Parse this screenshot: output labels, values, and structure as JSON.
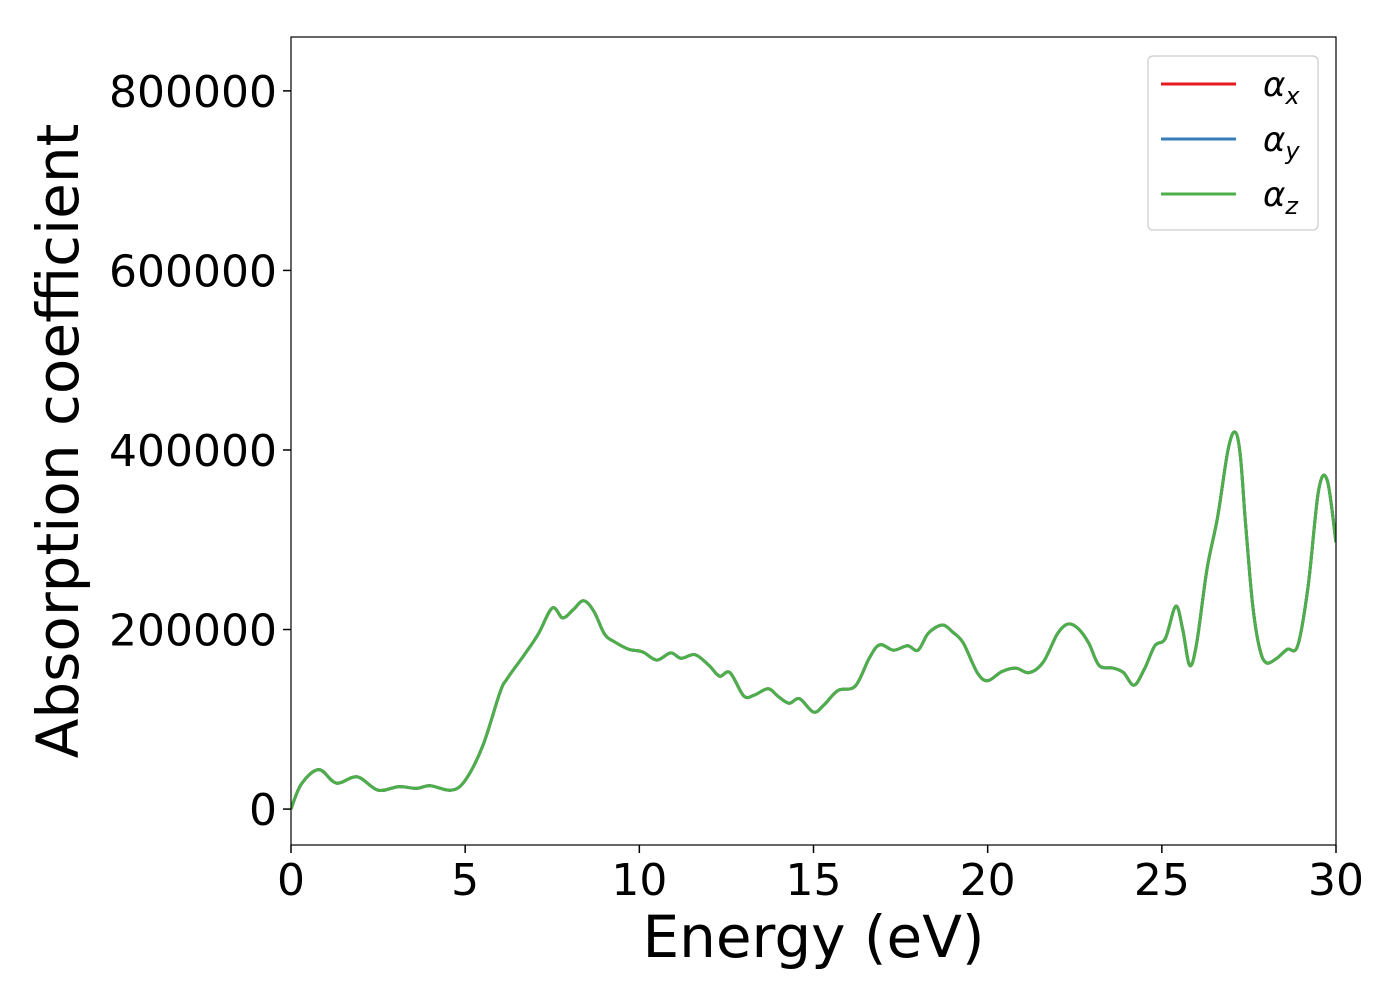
{
  "chart_data": {
    "type": "line",
    "xlabel": "Energy (eV)",
    "ylabel": "Absorption coefficient",
    "xlim": [
      0,
      30
    ],
    "ylim": [
      -40000,
      860000
    ],
    "xticks": [
      0,
      5,
      10,
      15,
      20,
      25,
      30
    ],
    "yticks": [
      0,
      200000,
      400000,
      600000,
      800000
    ],
    "xtick_labels": [
      "0",
      "5",
      "10",
      "15",
      "20",
      "25",
      "30"
    ],
    "ytick_labels": [
      "0",
      "200000",
      "400000",
      "600000",
      "800000"
    ],
    "grid": false,
    "legend_position": "top-right",
    "series": [
      {
        "name": "α_x",
        "symbol": "α",
        "subscript": "x",
        "color": "#e41a1c",
        "x": [
          0,
          0.3,
          0.8,
          1.3,
          1.9,
          2.5,
          3.1,
          3.6,
          4.0,
          4.6,
          5.0,
          5.5,
          6.0,
          6.2,
          6.7,
          7.1,
          7.5,
          7.8,
          8.1,
          8.4,
          8.7,
          9.0,
          9.3,
          9.7,
          10.1,
          10.5,
          10.9,
          11.2,
          11.6,
          12.0,
          12.3,
          12.6,
          13.0,
          13.3,
          13.7,
          14.0,
          14.3,
          14.6,
          15.0,
          15.3,
          15.7,
          16.2,
          16.6,
          16.9,
          17.3,
          17.7,
          18.0,
          18.3,
          18.7,
          19.0,
          19.3,
          19.7,
          20.0,
          20.4,
          20.8,
          21.2,
          21.6,
          22.0,
          22.3,
          22.6,
          22.9,
          23.2,
          23.6,
          23.9,
          24.2,
          24.5,
          24.8,
          25.1,
          25.4,
          25.6,
          25.8,
          26.0,
          26.3,
          26.6,
          26.9,
          27.1,
          27.25,
          27.4,
          27.6,
          27.8,
          28.0,
          28.3,
          28.6,
          28.9,
          29.2,
          29.5,
          29.75,
          30.0
        ],
        "values": [
          0,
          28000,
          44000,
          29000,
          36000,
          21000,
          25000,
          23000,
          26000,
          21000,
          32000,
          70000,
          130000,
          145000,
          172000,
          195000,
          224000,
          213000,
          222000,
          232000,
          220000,
          195000,
          186000,
          178000,
          175000,
          166000,
          174000,
          168000,
          172000,
          160000,
          148000,
          152000,
          126000,
          127000,
          134000,
          125000,
          118000,
          123000,
          108000,
          116000,
          132000,
          137000,
          168000,
          183000,
          177000,
          182000,
          177000,
          196000,
          205000,
          197000,
          185000,
          152000,
          143000,
          153000,
          157000,
          152000,
          164000,
          195000,
          206000,
          201000,
          185000,
          160000,
          157000,
          152000,
          138000,
          156000,
          182000,
          190000,
          226000,
          200000,
          160000,
          185000,
          268000,
          325000,
          400000,
          420000,
          395000,
          320000,
          230000,
          180000,
          163000,
          168000,
          178000,
          182000,
          248000,
          355000,
          366000,
          297000
        ]
      },
      {
        "name": "α_y",
        "symbol": "α",
        "subscript": "y",
        "color": "#377eb8",
        "x": [
          0,
          0.3,
          0.8,
          1.3,
          1.9,
          2.5,
          3.1,
          3.6,
          4.0,
          4.6,
          5.0,
          5.5,
          6.0,
          6.2,
          6.7,
          7.1,
          7.5,
          7.8,
          8.1,
          8.4,
          8.7,
          9.0,
          9.3,
          9.7,
          10.1,
          10.5,
          10.9,
          11.2,
          11.6,
          12.0,
          12.3,
          12.6,
          13.0,
          13.3,
          13.7,
          14.0,
          14.3,
          14.6,
          15.0,
          15.3,
          15.7,
          16.2,
          16.6,
          16.9,
          17.3,
          17.7,
          18.0,
          18.3,
          18.7,
          19.0,
          19.3,
          19.7,
          20.0,
          20.4,
          20.8,
          21.2,
          21.6,
          22.0,
          22.3,
          22.6,
          22.9,
          23.2,
          23.6,
          23.9,
          24.2,
          24.5,
          24.8,
          25.1,
          25.4,
          25.6,
          25.8,
          26.0,
          26.3,
          26.6,
          26.9,
          27.1,
          27.25,
          27.4,
          27.6,
          27.8,
          28.0,
          28.3,
          28.6,
          28.9,
          29.2,
          29.5,
          29.75,
          30.0
        ],
        "values": [
          0,
          28000,
          44000,
          29000,
          36000,
          21000,
          25000,
          23000,
          26000,
          21000,
          32000,
          70000,
          130000,
          145000,
          172000,
          195000,
          224000,
          213000,
          222000,
          232000,
          220000,
          195000,
          186000,
          178000,
          175000,
          166000,
          174000,
          168000,
          172000,
          160000,
          148000,
          152000,
          126000,
          127000,
          134000,
          125000,
          118000,
          123000,
          108000,
          116000,
          132000,
          137000,
          168000,
          183000,
          177000,
          182000,
          177000,
          196000,
          205000,
          197000,
          185000,
          152000,
          143000,
          153000,
          157000,
          152000,
          164000,
          195000,
          206000,
          201000,
          185000,
          160000,
          157000,
          152000,
          138000,
          156000,
          182000,
          190000,
          226000,
          200000,
          160000,
          185000,
          268000,
          325000,
          400000,
          420000,
          395000,
          320000,
          230000,
          180000,
          163000,
          168000,
          178000,
          182000,
          248000,
          355000,
          366000,
          297000
        ]
      },
      {
        "name": "α_z",
        "symbol": "α",
        "subscript": "z",
        "color": "#4daf4a",
        "x": [
          0,
          0.3,
          0.8,
          1.3,
          1.9,
          2.5,
          3.1,
          3.6,
          4.0,
          4.6,
          5.0,
          5.5,
          6.0,
          6.2,
          6.7,
          7.1,
          7.5,
          7.8,
          8.1,
          8.4,
          8.7,
          9.0,
          9.3,
          9.7,
          10.1,
          10.5,
          10.9,
          11.2,
          11.6,
          12.0,
          12.3,
          12.6,
          13.0,
          13.3,
          13.7,
          14.0,
          14.3,
          14.6,
          15.0,
          15.3,
          15.7,
          16.2,
          16.6,
          16.9,
          17.3,
          17.7,
          18.0,
          18.3,
          18.7,
          19.0,
          19.3,
          19.7,
          20.0,
          20.4,
          20.8,
          21.2,
          21.6,
          22.0,
          22.3,
          22.6,
          22.9,
          23.2,
          23.6,
          23.9,
          24.2,
          24.5,
          24.8,
          25.1,
          25.4,
          25.6,
          25.8,
          26.0,
          26.3,
          26.6,
          26.9,
          27.1,
          27.25,
          27.4,
          27.6,
          27.8,
          28.0,
          28.3,
          28.6,
          28.9,
          29.2,
          29.5,
          29.75,
          30.0
        ],
        "values": [
          0,
          28000,
          44000,
          29000,
          36000,
          21000,
          25000,
          23000,
          26000,
          21000,
          32000,
          70000,
          130000,
          145000,
          172000,
          195000,
          224000,
          213000,
          222000,
          232000,
          220000,
          195000,
          186000,
          178000,
          175000,
          166000,
          174000,
          168000,
          172000,
          160000,
          148000,
          152000,
          126000,
          127000,
          134000,
          125000,
          118000,
          123000,
          108000,
          116000,
          132000,
          137000,
          168000,
          183000,
          177000,
          182000,
          177000,
          196000,
          205000,
          197000,
          185000,
          152000,
          143000,
          153000,
          157000,
          152000,
          164000,
          195000,
          206000,
          201000,
          185000,
          160000,
          157000,
          152000,
          138000,
          156000,
          182000,
          190000,
          226000,
          200000,
          160000,
          185000,
          268000,
          325000,
          400000,
          420000,
          395000,
          320000,
          230000,
          180000,
          163000,
          168000,
          178000,
          182000,
          248000,
          355000,
          366000,
          297000
        ]
      }
    ]
  }
}
